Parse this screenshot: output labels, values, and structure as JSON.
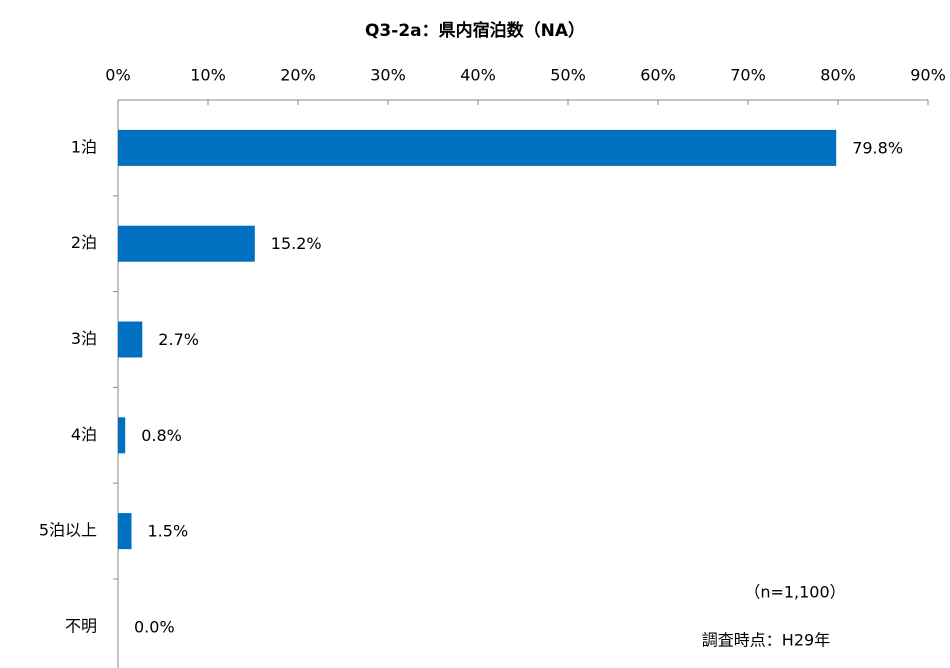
{
  "chart_data": {
    "type": "bar",
    "orientation": "horizontal",
    "title": "Q3-2a：県内宿泊数（NA）",
    "categories": [
      "1泊",
      "2泊",
      "3泊",
      "4泊",
      "5泊以上",
      "不明"
    ],
    "values": [
      79.8,
      15.2,
      2.7,
      0.8,
      1.5,
      0.0
    ],
    "value_labels": [
      "79.8%",
      "15.2%",
      "2.7%",
      "0.8%",
      "1.5%",
      "0.0%"
    ],
    "color": "#0070c0",
    "xlim": [
      0,
      90
    ],
    "xticks": [
      {
        "value": 0,
        "label": "0%"
      },
      {
        "value": 10,
        "label": "10%"
      },
      {
        "value": 20,
        "label": "20%"
      },
      {
        "value": 30,
        "label": "30%"
      },
      {
        "value": 40,
        "label": "40%"
      },
      {
        "value": 50,
        "label": "50%"
      },
      {
        "value": 60,
        "label": "60%"
      },
      {
        "value": 70,
        "label": "70%"
      },
      {
        "value": 80,
        "label": "80%"
      },
      {
        "value": 90,
        "label": "90%"
      }
    ],
    "annotations": [
      "（n=1,100）",
      "調査時点：H29年"
    ]
  }
}
